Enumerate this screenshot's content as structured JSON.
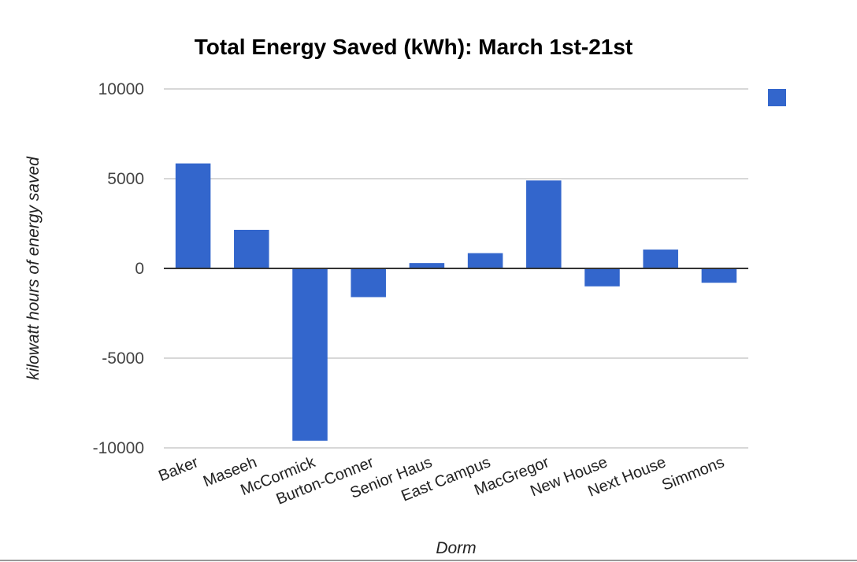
{
  "chart_data": {
    "type": "bar",
    "title": "Total Energy Saved (kWh): March 1st-21st",
    "xlabel": "Dorm",
    "ylabel": "kilowatt hours of energy saved",
    "categories": [
      "Baker",
      "Maseeh",
      "McCormick",
      "Burton-Conner",
      "Senior Haus",
      "East Campus",
      "MacGregor",
      "New House",
      "Next House",
      "Simmons"
    ],
    "series": [
      {
        "name": "",
        "values": [
          5850,
          2150,
          -9600,
          -1600,
          300,
          850,
          4900,
          -1000,
          1050,
          -800
        ]
      }
    ],
    "ylim": [
      -10000,
      10000
    ],
    "yticks": [
      10000,
      5000,
      0,
      -5000,
      -10000
    ],
    "grid": true,
    "legend": "right",
    "colors": {
      "bar": "#3366cc",
      "grid": "#cccccc",
      "zero_line": "#333333"
    }
  }
}
